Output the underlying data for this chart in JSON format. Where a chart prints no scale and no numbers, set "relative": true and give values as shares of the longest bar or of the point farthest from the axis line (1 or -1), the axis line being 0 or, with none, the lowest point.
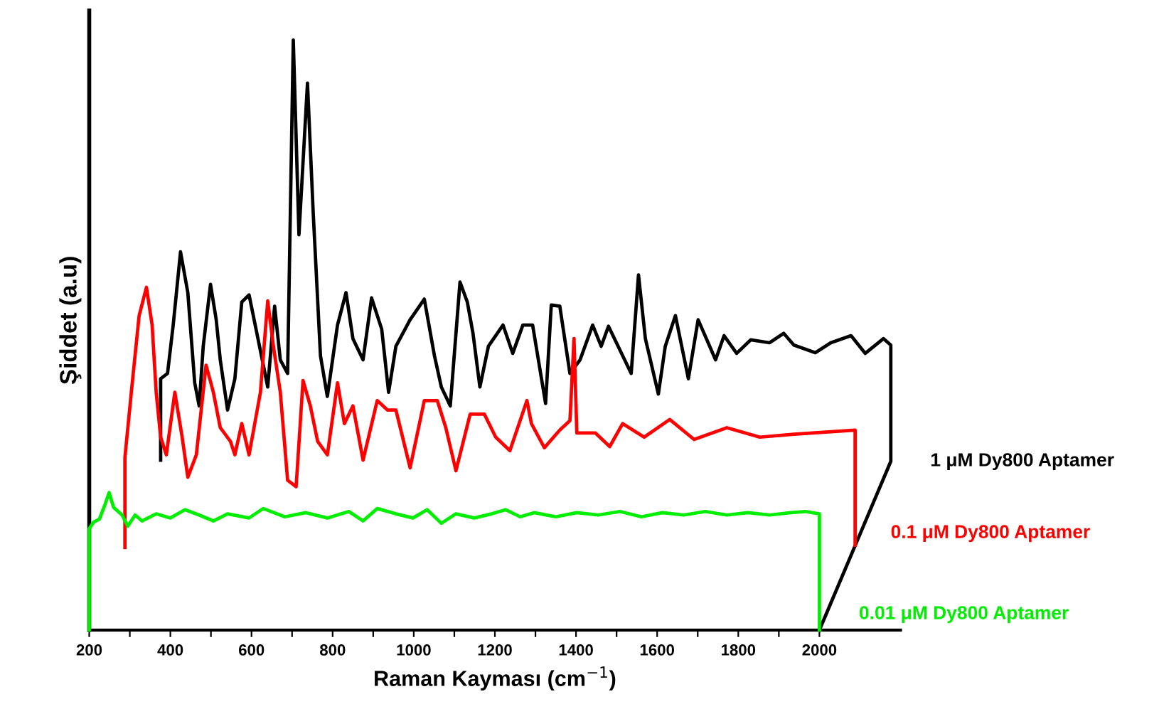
{
  "chart_data": {
    "type": "line",
    "relative": true,
    "xlabel": "Raman Kayması (cm$^{−1}$)",
    "ylabel": "Şiddet (a.u)",
    "xlim": [
      200,
      2200
    ],
    "xticks": [
      200,
      {
        "value": 300,
        "label": null
      },
      400,
      {
        "value": 500,
        "label": null
      },
      600,
      {
        "value": 700,
        "label": null
      },
      800,
      {
        "value": 900,
        "label": null
      },
      1000,
      {
        "value": 1100,
        "label": null
      },
      1200,
      {
        "value": 1300,
        "label": null
      },
      1400,
      {
        "value": 1500,
        "label": null
      },
      1600,
      {
        "value": 1700,
        "label": null
      },
      1800,
      {
        "value": 1900,
        "label": null
      },
      2000
    ],
    "grid": false,
    "legend": false,
    "marker": "none",
    "line_style": "solid",
    "series": [
      {
        "name": "1 μM Dy800 Aptamer",
        "color": "#000000",
        "x": [
          376,
          376,
          393,
          407,
          425,
          443,
          460,
          471,
          481,
          499,
          513,
          523,
          541,
          559,
          576,
          594,
          618,
          640,
          657,
          671,
          689,
          703,
          717,
          738,
          752,
          770,
          787,
          812,
          833,
          850,
          875,
          896,
          921,
          938,
          956,
          991,
          1026,
          1051,
          1068,
          1090,
          1114,
          1132,
          1146,
          1163,
          1184,
          1220,
          1244,
          1269,
          1293,
          1325,
          1339,
          1360,
          1385,
          1410,
          1441,
          1462,
          1480,
          1515,
          1536,
          1554,
          1571,
          1603,
          1620,
          1645,
          1677,
          1701,
          1744,
          1765,
          1796,
          1831,
          1877,
          1912,
          1937,
          1990,
          2028,
          2078,
          2113,
          2158,
          2176,
          2176,
          2000
        ],
        "values": [
          0.288,
          0.426,
          0.435,
          0.517,
          0.641,
          0.572,
          0.419,
          0.38,
          0.481,
          0.586,
          0.526,
          0.458,
          0.373,
          0.426,
          0.556,
          0.568,
          0.487,
          0.412,
          0.549,
          0.458,
          0.435,
          1.0,
          0.67,
          0.927,
          0.709,
          0.465,
          0.396,
          0.517,
          0.572,
          0.494,
          0.458,
          0.563,
          0.51,
          0.403,
          0.481,
          0.526,
          0.561,
          0.465,
          0.412,
          0.38,
          0.59,
          0.556,
          0.503,
          0.412,
          0.481,
          0.517,
          0.469,
          0.517,
          0.517,
          0.384,
          0.551,
          0.549,
          0.435,
          0.458,
          0.517,
          0.481,
          0.515,
          0.465,
          0.435,
          0.602,
          0.494,
          0.4,
          0.481,
          0.533,
          0.426,
          0.526,
          0.458,
          0.499,
          0.469,
          0.492,
          0.487,
          0.503,
          0.483,
          0.47,
          0.487,
          0.499,
          0.469,
          0.494,
          0.483,
          0.286,
          0
        ]
      },
      {
        "name": "0.1 μM Dy800 Aptamer",
        "color": "#ff0000",
        "x": [
          288,
          288,
          305,
          323,
          341,
          355,
          365,
          376,
          390,
          411,
          429,
          443,
          464,
          488,
          506,
          523,
          548,
          559,
          576,
          594,
          622,
          640,
          654,
          671,
          689,
          710,
          727,
          745,
          763,
          787,
          812,
          829,
          850,
          875,
          910,
          935,
          956,
          991,
          1026,
          1058,
          1079,
          1104,
          1139,
          1174,
          1202,
          1237,
          1279,
          1290,
          1322,
          1360,
          1385,
          1395,
          1402,
          1448,
          1483,
          1515,
          1568,
          1631,
          1691,
          1772,
          1853,
          1937,
          2088,
          2088
        ],
        "values": [
          0.14,
          0.293,
          0.412,
          0.533,
          0.581,
          0.517,
          0.403,
          0.327,
          0.297,
          0.403,
          0.327,
          0.259,
          0.297,
          0.449,
          0.403,
          0.343,
          0.32,
          0.297,
          0.35,
          0.297,
          0.403,
          0.558,
          0.481,
          0.403,
          0.254,
          0.243,
          0.423,
          0.38,
          0.32,
          0.297,
          0.419,
          0.35,
          0.38,
          0.288,
          0.389,
          0.373,
          0.373,
          0.275,
          0.389,
          0.389,
          0.343,
          0.27,
          0.366,
          0.366,
          0.327,
          0.304,
          0.389,
          0.35,
          0.309,
          0.339,
          0.355,
          0.494,
          0.334,
          0.334,
          0.311,
          0.35,
          0.327,
          0.357,
          0.323,
          0.343,
          0.327,
          0.332,
          0.339,
          0.144
        ]
      },
      {
        "name": "0.01 μM Dy800 Aptamer",
        "color": "#00ee00",
        "x": [
          200,
          200,
          211,
          225,
          239,
          249,
          260,
          281,
          295,
          313,
          330,
          365,
          400,
          436,
          471,
          506,
          541,
          594,
          629,
          682,
          734,
          787,
          840,
          875,
          910,
          956,
          998,
          1033,
          1068,
          1104,
          1149,
          1192,
          1227,
          1262,
          1297,
          1350,
          1402,
          1455,
          1508,
          1561,
          1613,
          1666,
          1719,
          1772,
          1824,
          1877,
          1930,
          1965,
          2000,
          2000
        ],
        "values": [
          0,
          0.172,
          0.183,
          0.188,
          0.213,
          0.233,
          0.208,
          0.195,
          0.176,
          0.195,
          0.185,
          0.197,
          0.19,
          0.204,
          0.195,
          0.185,
          0.197,
          0.19,
          0.206,
          0.192,
          0.199,
          0.19,
          0.201,
          0.185,
          0.206,
          0.197,
          0.19,
          0.204,
          0.181,
          0.197,
          0.19,
          0.197,
          0.204,
          0.192,
          0.199,
          0.192,
          0.199,
          0.195,
          0.201,
          0.192,
          0.199,
          0.195,
          0.201,
          0.195,
          0.199,
          0.195,
          0.199,
          0.201,
          0.197,
          0
        ]
      }
    ]
  }
}
